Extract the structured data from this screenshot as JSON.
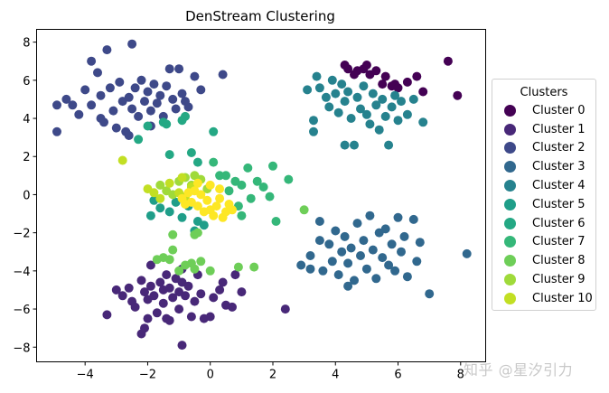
{
  "chart_data": {
    "type": "scatter",
    "title": "DenStream Clustering",
    "xlabel": "",
    "ylabel": "",
    "xlim": [
      -5.55,
      8.8
    ],
    "ylim": [
      -8.77,
      8.67
    ],
    "xticks": [
      -4,
      -2,
      0,
      2,
      4,
      6,
      8
    ],
    "yticks": [
      -8,
      -6,
      -4,
      -2,
      0,
      2,
      4,
      6,
      8
    ],
    "xtick_labels": [
      "−4",
      "−2",
      "0",
      "2",
      "4",
      "6",
      "8"
    ],
    "ytick_labels": [
      "−8",
      "−6",
      "−4",
      "−2",
      "0",
      "2",
      "4",
      "6",
      "8"
    ],
    "grid": false,
    "legend": {
      "title": "Clusters",
      "position": "center right, outside plot",
      "entries": [
        "Cluster 0",
        "Cluster 1",
        "Cluster 2",
        "Cluster 3",
        "Cluster 4",
        "Cluster 5",
        "Cluster 6",
        "Cluster 7",
        "Cluster 8",
        "Cluster 9",
        "Cluster 10"
      ]
    },
    "series": [
      {
        "name": "Cluster 0",
        "color": "#440154",
        "points": [
          [
            4.3,
            6.8
          ],
          [
            4.4,
            6.6
          ],
          [
            4.7,
            6.5
          ],
          [
            4.9,
            6.6
          ],
          [
            5.0,
            6.8
          ],
          [
            5.1,
            6.3
          ],
          [
            5.3,
            6.5
          ],
          [
            5.6,
            6.2
          ],
          [
            5.8,
            5.7
          ],
          [
            5.9,
            5.8
          ],
          [
            6.0,
            5.6
          ],
          [
            6.3,
            5.9
          ],
          [
            6.6,
            6.2
          ],
          [
            6.8,
            5.4
          ],
          [
            7.6,
            7.0
          ],
          [
            7.9,
            5.2
          ],
          [
            4.6,
            6.3
          ],
          [
            5.5,
            5.8
          ]
        ]
      },
      {
        "name": "Cluster 1",
        "color": "#482878",
        "points": [
          [
            -3.3,
            -6.3
          ],
          [
            -3.0,
            -5.0
          ],
          [
            -2.8,
            -5.3
          ],
          [
            -2.6,
            -4.9
          ],
          [
            -2.5,
            -5.6
          ],
          [
            -2.4,
            -5.9
          ],
          [
            -2.2,
            -4.5
          ],
          [
            -2.1,
            -5.1
          ],
          [
            -2.0,
            -5.5
          ],
          [
            -2.0,
            -6.5
          ],
          [
            -1.9,
            -4.8
          ],
          [
            -1.8,
            -5.3
          ],
          [
            -1.7,
            -6.2
          ],
          [
            -1.6,
            -4.6
          ],
          [
            -1.5,
            -5.0
          ],
          [
            -1.5,
            -5.7
          ],
          [
            -1.4,
            -4.2
          ],
          [
            -1.3,
            -4.9
          ],
          [
            -1.3,
            -6.6
          ],
          [
            -1.2,
            -5.4
          ],
          [
            -1.1,
            -4.4
          ],
          [
            -1.0,
            -5.1
          ],
          [
            -1.0,
            -6.0
          ],
          [
            -0.9,
            -7.9
          ],
          [
            -0.9,
            -4.6
          ],
          [
            -0.8,
            -5.3
          ],
          [
            -0.7,
            -4.8
          ],
          [
            -0.6,
            -6.4
          ],
          [
            -0.5,
            -5.6
          ],
          [
            -0.4,
            -4.2
          ],
          [
            -0.3,
            -5.2
          ],
          [
            -0.2,
            -6.5
          ],
          [
            0.0,
            -6.4
          ],
          [
            0.1,
            -5.4
          ],
          [
            0.3,
            -5.0
          ],
          [
            0.4,
            -4.6
          ],
          [
            0.5,
            -5.8
          ],
          [
            0.7,
            -5.9
          ],
          [
            0.8,
            -4.2
          ],
          [
            1.0,
            -5.1
          ],
          [
            2.4,
            -6.0
          ],
          [
            -2.1,
            -7.0
          ],
          [
            -2.2,
            -7.3
          ],
          [
            -1.9,
            -3.7
          ],
          [
            -1.4,
            -6.5
          ],
          [
            -0.9,
            -3.9
          ]
        ]
      },
      {
        "name": "Cluster 2",
        "color": "#3e4989",
        "points": [
          [
            -4.9,
            3.3
          ],
          [
            -4.9,
            4.7
          ],
          [
            -4.6,
            5.0
          ],
          [
            -4.4,
            4.7
          ],
          [
            -4.2,
            4.2
          ],
          [
            -4.0,
            5.5
          ],
          [
            -3.8,
            7.0
          ],
          [
            -3.8,
            4.7
          ],
          [
            -3.6,
            6.4
          ],
          [
            -3.5,
            5.2
          ],
          [
            -3.4,
            3.8
          ],
          [
            -3.3,
            7.6
          ],
          [
            -3.2,
            5.6
          ],
          [
            -3.1,
            4.4
          ],
          [
            -3.0,
            3.5
          ],
          [
            -2.9,
            5.9
          ],
          [
            -2.8,
            4.9
          ],
          [
            -2.7,
            3.3
          ],
          [
            -2.6,
            5.1
          ],
          [
            -2.5,
            7.9
          ],
          [
            -2.5,
            4.5
          ],
          [
            -2.4,
            5.6
          ],
          [
            -2.3,
            4.1
          ],
          [
            -2.2,
            6.0
          ],
          [
            -2.1,
            4.9
          ],
          [
            -2.0,
            5.4
          ],
          [
            -1.9,
            4.4
          ],
          [
            -1.8,
            5.8
          ],
          [
            -1.7,
            4.8
          ],
          [
            -1.6,
            5.2
          ],
          [
            -1.5,
            4.1
          ],
          [
            -1.4,
            5.7
          ],
          [
            -1.3,
            6.6
          ],
          [
            -1.2,
            5.0
          ],
          [
            -1.1,
            4.5
          ],
          [
            -1.0,
            6.6
          ],
          [
            -0.9,
            5.3
          ],
          [
            -0.8,
            4.9
          ],
          [
            -0.7,
            4.6
          ],
          [
            -0.5,
            6.2
          ],
          [
            -0.3,
            5.5
          ],
          [
            0.4,
            6.3
          ],
          [
            -3.5,
            4.0
          ],
          [
            -2.6,
            3.1
          ],
          [
            -1.9,
            3.6
          ]
        ]
      },
      {
        "name": "Cluster 3",
        "color": "#31688e",
        "points": [
          [
            2.9,
            -3.7
          ],
          [
            3.2,
            -3.2
          ],
          [
            3.5,
            -1.4
          ],
          [
            3.5,
            -2.4
          ],
          [
            3.6,
            -4.0
          ],
          [
            3.8,
            -2.6
          ],
          [
            3.9,
            -3.5
          ],
          [
            4.0,
            -1.9
          ],
          [
            4.1,
            -4.2
          ],
          [
            4.2,
            -3.0
          ],
          [
            4.3,
            -2.2
          ],
          [
            4.4,
            -3.6
          ],
          [
            4.5,
            -2.8
          ],
          [
            4.6,
            -4.5
          ],
          [
            4.7,
            -1.5
          ],
          [
            4.8,
            -3.2
          ],
          [
            4.9,
            -2.4
          ],
          [
            5.0,
            -3.9
          ],
          [
            5.1,
            -1.1
          ],
          [
            5.2,
            -2.9
          ],
          [
            5.3,
            -4.4
          ],
          [
            5.4,
            -2.0
          ],
          [
            5.5,
            -3.3
          ],
          [
            5.6,
            -1.8
          ],
          [
            5.7,
            -3.7
          ],
          [
            5.8,
            -2.6
          ],
          [
            5.9,
            -4.0
          ],
          [
            6.0,
            -1.2
          ],
          [
            6.1,
            -3.0
          ],
          [
            6.2,
            -2.2
          ],
          [
            6.3,
            -4.3
          ],
          [
            6.5,
            -1.3
          ],
          [
            6.6,
            -3.5
          ],
          [
            6.7,
            -2.5
          ],
          [
            7.0,
            -5.2
          ],
          [
            8.2,
            -3.1
          ],
          [
            3.2,
            -3.9
          ],
          [
            4.4,
            -4.8
          ]
        ]
      },
      {
        "name": "Cluster 4",
        "color": "#26828e",
        "points": [
          [
            3.3,
            3.3
          ],
          [
            3.3,
            3.9
          ],
          [
            3.4,
            6.2
          ],
          [
            3.5,
            5.6
          ],
          [
            3.7,
            5.1
          ],
          [
            3.8,
            4.6
          ],
          [
            3.9,
            6.0
          ],
          [
            4.0,
            5.3
          ],
          [
            4.1,
            4.3
          ],
          [
            4.2,
            5.8
          ],
          [
            4.3,
            2.6
          ],
          [
            4.3,
            4.9
          ],
          [
            4.4,
            5.4
          ],
          [
            4.5,
            4.0
          ],
          [
            4.6,
            2.6
          ],
          [
            4.7,
            5.1
          ],
          [
            4.8,
            4.5
          ],
          [
            4.9,
            5.7
          ],
          [
            5.0,
            4.2
          ],
          [
            5.1,
            3.7
          ],
          [
            5.2,
            5.3
          ],
          [
            5.3,
            4.7
          ],
          [
            5.4,
            3.4
          ],
          [
            5.5,
            5.0
          ],
          [
            5.6,
            4.1
          ],
          [
            5.7,
            2.6
          ],
          [
            5.8,
            4.6
          ],
          [
            5.9,
            5.2
          ],
          [
            6.0,
            3.9
          ],
          [
            6.1,
            4.9
          ],
          [
            6.3,
            4.2
          ],
          [
            6.5,
            5.0
          ],
          [
            6.8,
            3.8
          ],
          [
            3.1,
            5.5
          ]
        ]
      },
      {
        "name": "Cluster 5",
        "color": "#1f9e89",
        "points": [
          [
            -1.9,
            -1.1
          ],
          [
            -1.6,
            -0.7
          ],
          [
            -1.3,
            -0.9
          ],
          [
            -1.1,
            -0.4
          ],
          [
            -0.9,
            -1.2
          ],
          [
            -0.7,
            -0.6
          ],
          [
            -0.5,
            -1.9
          ],
          [
            -0.4,
            -1.4
          ],
          [
            -0.2,
            -1.6
          ],
          [
            -1.8,
            -0.3
          ]
        ]
      },
      {
        "name": "Cluster 6",
        "color": "#24a884",
        "points": [
          [
            -2.3,
            2.9
          ],
          [
            -2.0,
            3.6
          ],
          [
            -1.5,
            3.8
          ],
          [
            -1.4,
            3.7
          ],
          [
            -1.3,
            2.1
          ],
          [
            -0.9,
            3.9
          ],
          [
            -0.8,
            4.1
          ],
          [
            -0.6,
            2.2
          ],
          [
            -0.4,
            1.7
          ],
          [
            0.1,
            3.3
          ]
        ]
      },
      {
        "name": "Cluster 7",
        "color": "#35b779",
        "points": [
          [
            0.1,
            1.7
          ],
          [
            0.3,
            1.0
          ],
          [
            0.5,
            1.0
          ],
          [
            0.8,
            0.7
          ],
          [
            1.0,
            0.5
          ],
          [
            1.2,
            1.4
          ],
          [
            1.3,
            -0.2
          ],
          [
            1.5,
            0.7
          ],
          [
            1.7,
            0.4
          ],
          [
            1.9,
            -0.1
          ],
          [
            2.0,
            1.5
          ],
          [
            2.5,
            0.8
          ],
          [
            0.6,
            0.2
          ],
          [
            0.9,
            -0.6
          ],
          [
            1.0,
            -1.1
          ],
          [
            2.1,
            -1.4
          ]
        ]
      },
      {
        "name": "Cluster 8",
        "color": "#6ece58",
        "points": [
          [
            -1.7,
            -3.4
          ],
          [
            -1.5,
            -3.3
          ],
          [
            -1.3,
            -3.4
          ],
          [
            -1.2,
            -2.9
          ],
          [
            -1.0,
            -4.0
          ],
          [
            -0.8,
            -3.7
          ],
          [
            -0.6,
            -3.6
          ],
          [
            -0.5,
            -3.9
          ],
          [
            -0.3,
            -3.5
          ],
          [
            0.0,
            -4.0
          ],
          [
            0.9,
            -3.8
          ],
          [
            1.4,
            -3.8
          ],
          [
            -0.4,
            -2.0
          ],
          [
            -0.5,
            -2.1
          ],
          [
            -1.2,
            -2.1
          ],
          [
            3.0,
            -0.8
          ]
        ]
      },
      {
        "name": "Cluster 9",
        "color": "#9fda3a",
        "points": [
          [
            -1.6,
            0.5
          ],
          [
            -1.4,
            0.2
          ],
          [
            -1.2,
            0.0
          ],
          [
            -1.0,
            0.7
          ],
          [
            -0.8,
            0.9
          ],
          [
            -0.6,
            0.5
          ],
          [
            -0.5,
            1.0
          ],
          [
            -0.3,
            0.8
          ],
          [
            -0.1,
            0.3
          ]
        ]
      },
      {
        "name": "Cluster 10",
        "color": "#c2df23",
        "points": [
          [
            -2.8,
            1.8
          ],
          [
            -2.0,
            0.3
          ],
          [
            -1.8,
            0.1
          ],
          [
            -1.6,
            -0.2
          ],
          [
            -1.3,
            0.6
          ],
          [
            -1.0,
            0.1
          ],
          [
            -0.8,
            -0.1
          ],
          [
            -0.9,
            0.9
          ],
          [
            -0.6,
            0.4
          ]
        ]
      },
      {
        "name": "(unlisted)",
        "color": "#fde725",
        "points": [
          [
            -0.9,
            -0.2
          ],
          [
            -0.7,
            0.1
          ],
          [
            -0.6,
            -0.4
          ],
          [
            -0.5,
            0.2
          ],
          [
            -0.4,
            -0.6
          ],
          [
            -0.3,
            0.0
          ],
          [
            -0.2,
            -0.9
          ],
          [
            -0.1,
            -0.3
          ],
          [
            0.0,
            0.5
          ],
          [
            0.1,
            -1.1
          ],
          [
            0.2,
            -0.6
          ],
          [
            0.3,
            -0.2
          ],
          [
            0.4,
            -1.2
          ],
          [
            0.5,
            -0.9
          ],
          [
            0.6,
            -0.5
          ],
          [
            0.3,
            0.3
          ],
          [
            -0.4,
            0.6
          ],
          [
            0.0,
            -0.8
          ],
          [
            -0.8,
            -0.5
          ],
          [
            0.7,
            -0.8
          ]
        ]
      }
    ]
  },
  "watermark": "知乎 @星汐引力"
}
